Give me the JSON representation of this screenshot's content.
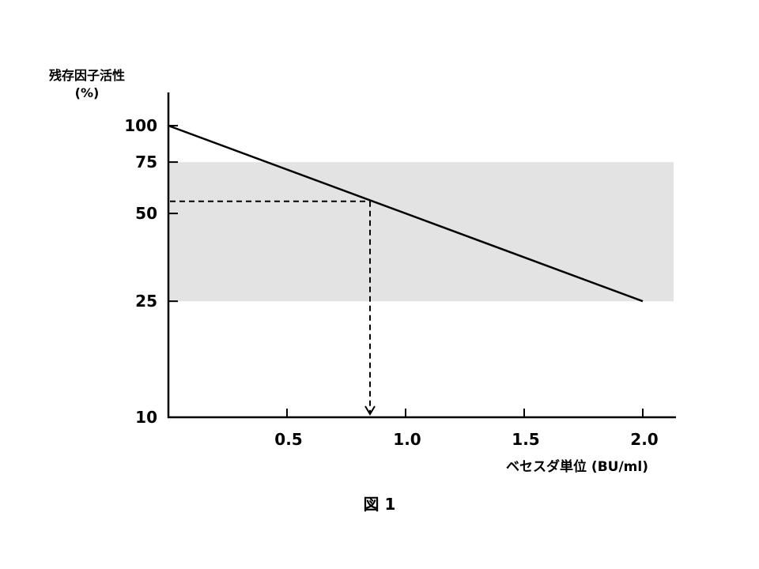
{
  "chart_data": {
    "type": "line",
    "ylabel_lines": [
      "残存因子活性",
      "(%)"
    ],
    "xlabel": "ベセスダ単位 (BU/ml)",
    "caption": "図 1",
    "y_scale": "log",
    "ylim": [
      10,
      130
    ],
    "xlim": [
      0,
      2.15
    ],
    "y_ticks": [
      {
        "value": 100,
        "label": "100"
      },
      {
        "value": 75,
        "label": "75"
      },
      {
        "value": 50,
        "label": "50"
      },
      {
        "value": 25,
        "label": "25"
      },
      {
        "value": 10,
        "label": "10"
      }
    ],
    "x_ticks": [
      {
        "value": 0.5,
        "label": "0.5"
      },
      {
        "value": 1.0,
        "label": "1.0"
      },
      {
        "value": 1.5,
        "label": "1.5"
      },
      {
        "value": 2.0,
        "label": "2.0"
      }
    ],
    "series": [
      {
        "points": [
          {
            "x": 0,
            "y": 100
          },
          {
            "x": 2.0,
            "y": 25
          }
        ]
      }
    ],
    "shaded_band": {
      "y_min": 25,
      "y_max": 75,
      "color": "#e3e3e3"
    },
    "reference_point": {
      "x": 0.85,
      "y": 55
    },
    "grid": false,
    "legend": "none",
    "colors": {
      "line": "#000000",
      "axis": "#000000",
      "band": "#e3e3e3"
    }
  }
}
